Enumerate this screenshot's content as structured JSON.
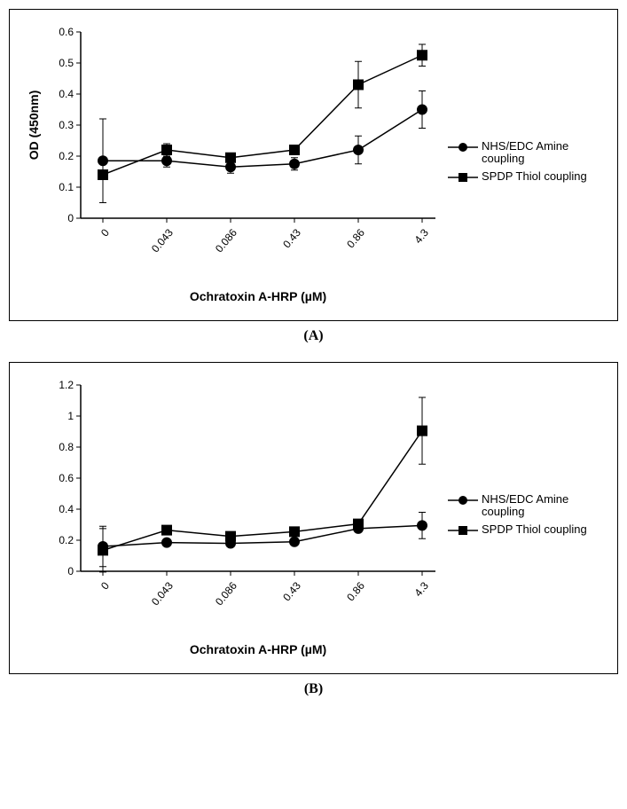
{
  "panels": {
    "A": {
      "label": "(A)",
      "type": "line",
      "ylabel": "OD (450nm)",
      "xlabel": "Ochratoxin A-HRP (µM)",
      "categories": [
        "0",
        "0.043",
        "0.086",
        "0.43",
        "0.86",
        "4.3"
      ],
      "ylim": [
        0,
        0.6
      ],
      "yticks": [
        0,
        0.1,
        0.2,
        0.3,
        0.4,
        0.5,
        0.6
      ],
      "label_fontsize": 13,
      "tick_fontsize": 12,
      "series": [
        {
          "name": "NHS/EDC Amine coupling",
          "marker": "circle",
          "color": "#000000",
          "line_color": "#000000",
          "line_width": 1.5,
          "marker_size": 6,
          "values": [
            0.185,
            0.185,
            0.165,
            0.175,
            0.22,
            0.35
          ],
          "err": [
            0.135,
            0.02,
            0.02,
            0.02,
            0.045,
            0.06
          ]
        },
        {
          "name": "SPDP Thiol coupling",
          "marker": "square",
          "color": "#000000",
          "line_color": "#000000",
          "line_width": 1.5,
          "marker_size": 6,
          "values": [
            0.14,
            0.22,
            0.195,
            0.22,
            0.43,
            0.525
          ],
          "err": [
            0.0,
            0.02,
            0.0,
            0.0,
            0.075,
            0.035
          ]
        }
      ],
      "background_color": "#ffffff",
      "axis_color": "#000000"
    },
    "B": {
      "label": "(B)",
      "type": "line",
      "ylabel": "",
      "xlabel": "Ochratoxin A-HRP (µM)",
      "categories": [
        "0",
        "0.043",
        "0.086",
        "0.43",
        "0.86",
        "4.3"
      ],
      "ylim": [
        0,
        1.2
      ],
      "yticks": [
        0,
        0.2,
        0.4,
        0.6,
        0.8,
        1.0,
        1.2
      ],
      "label_fontsize": 13,
      "tick_fontsize": 12,
      "series": [
        {
          "name": "NHS/EDC Amine coupling",
          "marker": "circle",
          "color": "#000000",
          "line_color": "#000000",
          "line_width": 1.5,
          "marker_size": 6,
          "values": [
            0.16,
            0.185,
            0.18,
            0.19,
            0.275,
            0.295
          ],
          "err": [
            0.13,
            0.0,
            0.0,
            0.0,
            0.0,
            0.085
          ]
        },
        {
          "name": "SPDP Thiol coupling",
          "marker": "square",
          "color": "#000000",
          "line_color": "#000000",
          "line_width": 1.5,
          "marker_size": 6,
          "values": [
            0.135,
            0.265,
            0.225,
            0.255,
            0.305,
            0.905
          ],
          "err": [
            0.14,
            0.0,
            0.0,
            0.0,
            0.0,
            0.215
          ]
        }
      ],
      "background_color": "#ffffff",
      "axis_color": "#000000"
    }
  },
  "legend_labels": {
    "nhs": "NHS/EDC Amine coupling",
    "spdp": "SPDP Thiol coupling"
  }
}
